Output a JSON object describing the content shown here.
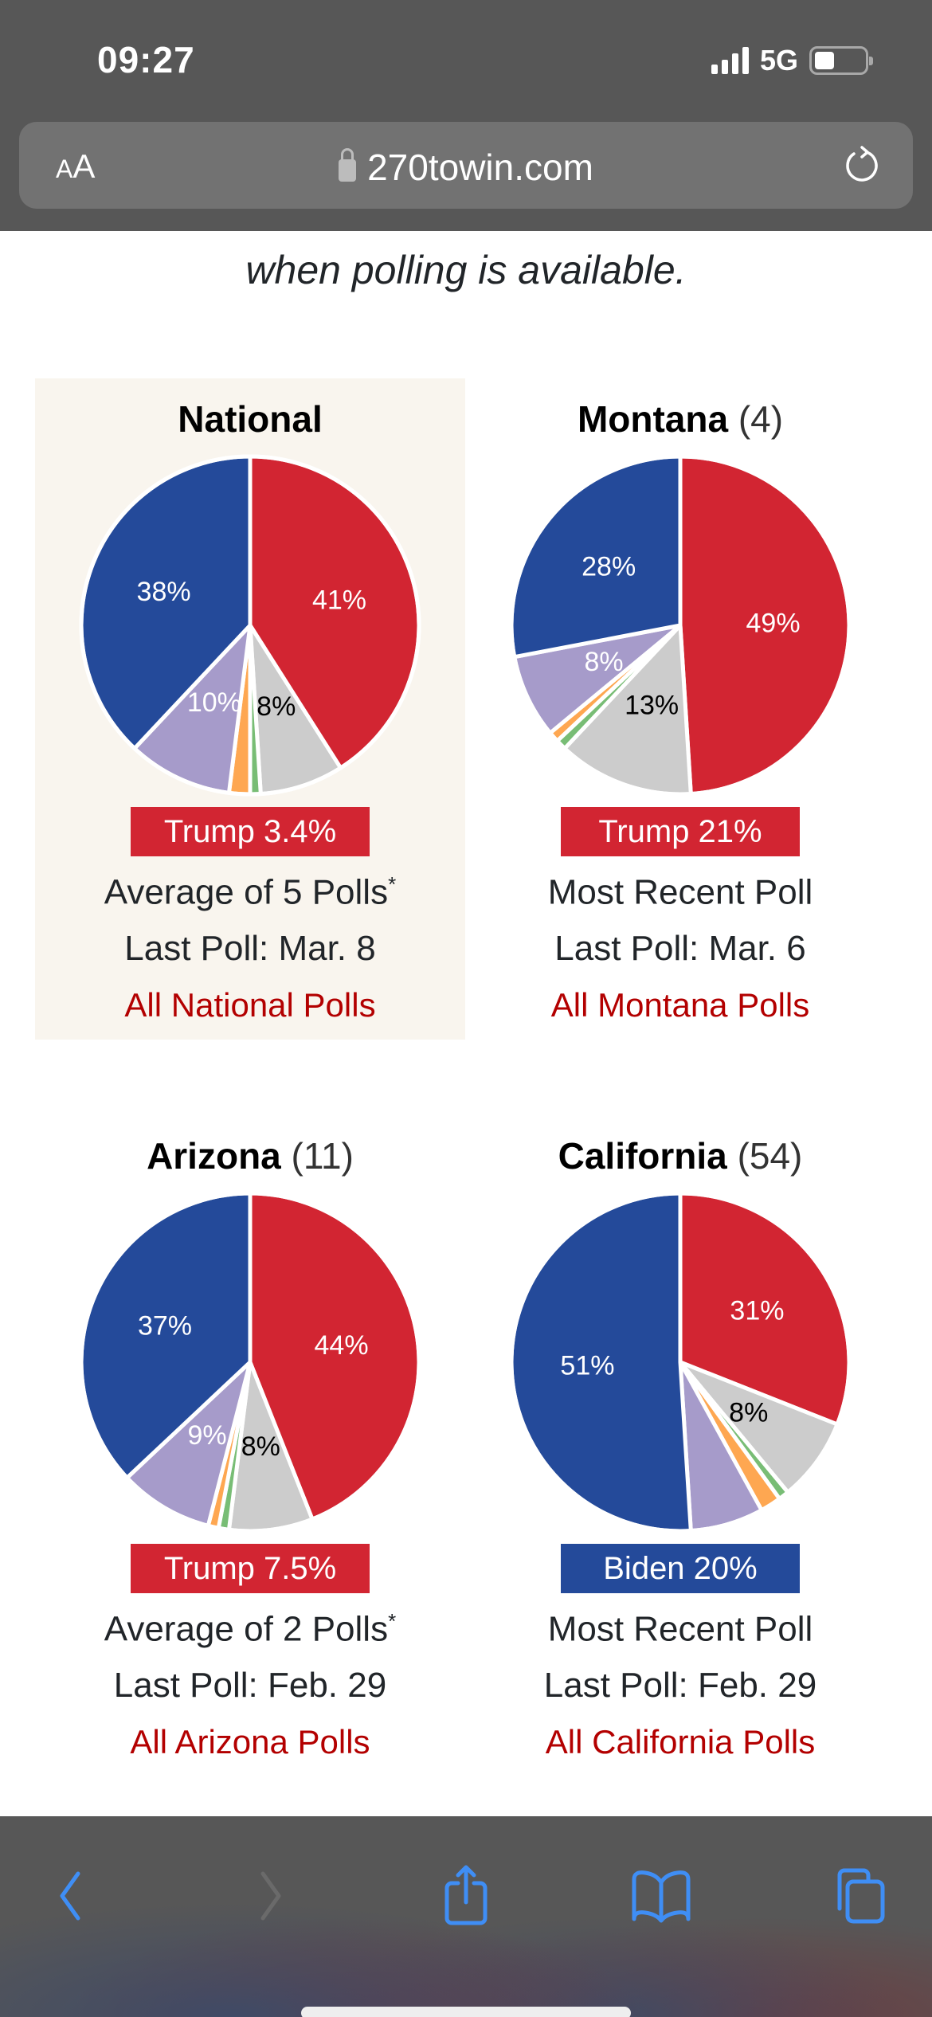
{
  "status_bar": {
    "time": "09:27",
    "network": "5G",
    "battery_level": 0.4
  },
  "browser": {
    "text_size_label_small": "A",
    "text_size_label_large": "A",
    "url": "270towin.com",
    "icons": {
      "lock": "lock-icon",
      "reload": "reload-icon"
    },
    "toolbar": {
      "back": "chevron-left-icon",
      "forward": "chevron-right-icon",
      "share": "share-icon",
      "bookmarks": "book-icon",
      "tabs": "tabs-icon"
    }
  },
  "page": {
    "intro_text": "when polling is available."
  },
  "colors": {
    "republican": "#d22532",
    "democrat": "#244a9a",
    "independent": "#a69bca",
    "other": "#cccccc",
    "libertarian": "#fea751",
    "green": "#78bd75",
    "link": "#b30000",
    "highlight_bg": "#f9f5ee"
  },
  "panels": [
    {
      "name": "National",
      "electoral_votes": "",
      "lead_text": "Trump 3.4%",
      "lead_party": "republican",
      "method": "Average of 5 Polls",
      "asterisk": "*",
      "last_poll": "Last Poll: Mar. 8",
      "link": "All National Polls",
      "highlighted": true
    },
    {
      "name": "Montana",
      "electoral_votes": "(4)",
      "lead_text": "Trump 21%",
      "lead_party": "republican",
      "method": "Most Recent Poll",
      "asterisk": "",
      "last_poll": "Last Poll: Mar. 6",
      "link": "All Montana Polls",
      "highlighted": false
    },
    {
      "name": "Arizona",
      "electoral_votes": "(11)",
      "lead_text": "Trump 7.5%",
      "lead_party": "republican",
      "method": "Average of 2 Polls",
      "asterisk": "*",
      "last_poll": "Last Poll: Feb. 29",
      "link": "All Arizona Polls",
      "highlighted": false
    },
    {
      "name": "California",
      "electoral_votes": "(54)",
      "lead_text": "Biden 20%",
      "lead_party": "democrat",
      "method": "Most Recent Poll",
      "asterisk": "",
      "last_poll": "Last Poll: Feb. 29",
      "link": "All California Polls",
      "highlighted": false
    }
  ],
  "chart_data": [
    {
      "type": "pie",
      "title": "National",
      "order": "clockwise from top",
      "slices": [
        {
          "party": "republican",
          "value": 41,
          "label": "41%"
        },
        {
          "party": "other",
          "value": 8,
          "label": "8%"
        },
        {
          "party": "green",
          "value": 1,
          "label": ""
        },
        {
          "party": "libertarian",
          "value": 2,
          "label": ""
        },
        {
          "party": "independent",
          "value": 10,
          "label": "10%"
        },
        {
          "party": "democrat",
          "value": 38,
          "label": "38%"
        }
      ]
    },
    {
      "type": "pie",
      "title": "Montana (4)",
      "order": "clockwise from top",
      "slices": [
        {
          "party": "republican",
          "value": 49,
          "label": "49%"
        },
        {
          "party": "other",
          "value": 13,
          "label": "13%"
        },
        {
          "party": "green",
          "value": 1,
          "label": ""
        },
        {
          "party": "libertarian",
          "value": 1,
          "label": ""
        },
        {
          "party": "independent",
          "value": 8,
          "label": "8%"
        },
        {
          "party": "democrat",
          "value": 28,
          "label": "28%"
        }
      ]
    },
    {
      "type": "pie",
      "title": "Arizona (11)",
      "order": "clockwise from top",
      "slices": [
        {
          "party": "republican",
          "value": 44,
          "label": "44%"
        },
        {
          "party": "other",
          "value": 8,
          "label": "8%"
        },
        {
          "party": "green",
          "value": 1,
          "label": ""
        },
        {
          "party": "libertarian",
          "value": 1,
          "label": ""
        },
        {
          "party": "independent",
          "value": 9,
          "label": "9%"
        },
        {
          "party": "democrat",
          "value": 37,
          "label": "37%"
        }
      ]
    },
    {
      "type": "pie",
      "title": "California (54)",
      "order": "clockwise from top",
      "slices": [
        {
          "party": "republican",
          "value": 31,
          "label": "31%"
        },
        {
          "party": "other",
          "value": 8,
          "label": "8%"
        },
        {
          "party": "green",
          "value": 1,
          "label": ""
        },
        {
          "party": "libertarian",
          "value": 2,
          "label": ""
        },
        {
          "party": "independent",
          "value": 7,
          "label": ""
        },
        {
          "party": "democrat",
          "value": 51,
          "label": "51%"
        }
      ]
    }
  ]
}
